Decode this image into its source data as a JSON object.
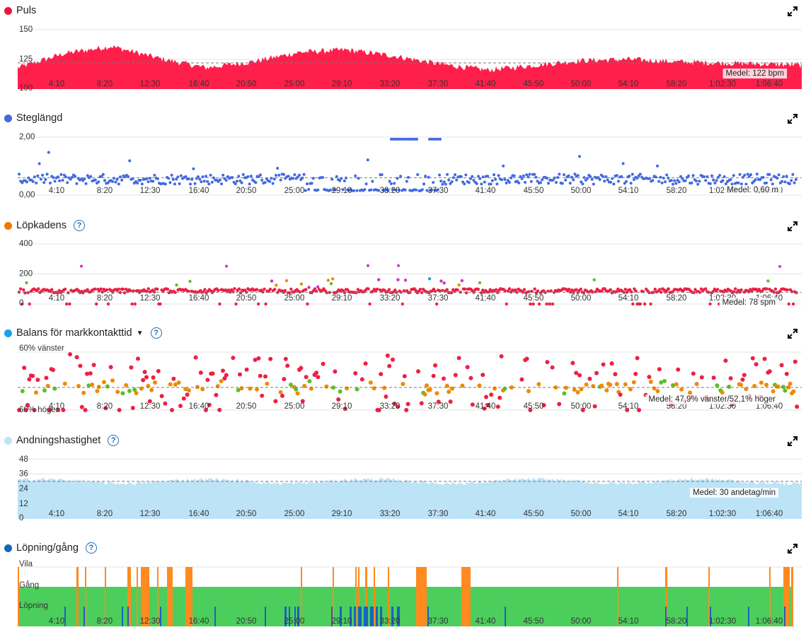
{
  "x_ticks": [
    "4:10",
    "8:20",
    "12:30",
    "16:40",
    "20:50",
    "25:00",
    "29:10",
    "33:20",
    "37:30",
    "41:40",
    "45:50",
    "50:00",
    "54:10",
    "58:20",
    "1:02:30",
    "1:06:40"
  ],
  "colors": {
    "heart_rate": "#ff1f4b",
    "stride": "#4169e1",
    "cadence_red": "#ee1f44",
    "cadence_orange": "#f08a00",
    "cadence_green": "#5cbf2a",
    "cadence_purple": "#cc33cc",
    "cadence_blue": "#16a3d8",
    "respiration": "#bde3f7",
    "run_walk_green": "#4cce5c",
    "run_walk_orange": "#ff8a1f",
    "run_walk_blue": "#1565c0",
    "grid": "#e3e3e3",
    "avg_line": "#777777"
  },
  "panels": {
    "heart_rate": {
      "title": "Puls",
      "dot_color": "#f0143c",
      "help": false,
      "caret": false,
      "avg_label": "Medel: 122 bpm"
    },
    "stride": {
      "title": "Steglängd",
      "dot_color": "#4169e1",
      "help": false,
      "caret": false,
      "avg_label": "Medel: 0,60 m"
    },
    "cadence": {
      "title": "Löpkadens",
      "dot_color": "#f07800",
      "help": true,
      "caret": false,
      "avg_label": "Medel: 78 spm"
    },
    "balance": {
      "title": "Balans för markkontakttid",
      "dot_color": "#16a3e8",
      "help": true,
      "caret": true,
      "avg_label": "Medel: 47,9% vänster/52,1% höger"
    },
    "respiration": {
      "title": "Andningshastighet",
      "dot_color": "#bde3f7",
      "help": true,
      "caret": false,
      "avg_label": "Medel: 30 andetag/min"
    },
    "run_walk": {
      "title": "Löpning/gång",
      "dot_color": "#1565c0",
      "help": true,
      "caret": false
    }
  },
  "chart_data": [
    {
      "type": "area",
      "title": "Puls",
      "unit": "bpm",
      "ylim": [
        100,
        150
      ],
      "y_ticks": [
        "150",
        "125",
        "100"
      ],
      "average": 122,
      "series_shape": [
        {
          "x": "0:00",
          "y": 118
        },
        {
          "x": "4:10",
          "y": 130
        },
        {
          "x": "8:20",
          "y": 136
        },
        {
          "x": "12:30",
          "y": 126
        },
        {
          "x": "16:40",
          "y": 118
        },
        {
          "x": "20:50",
          "y": 123
        },
        {
          "x": "25:00",
          "y": 131
        },
        {
          "x": "29:10",
          "y": 133
        },
        {
          "x": "33:20",
          "y": 128
        },
        {
          "x": "37:30",
          "y": 121
        },
        {
          "x": "41:40",
          "y": 116
        },
        {
          "x": "45:50",
          "y": 120
        },
        {
          "x": "50:00",
          "y": 124
        },
        {
          "x": "54:10",
          "y": 125
        },
        {
          "x": "58:20",
          "y": 123
        },
        {
          "x": "1:02:30",
          "y": 122
        },
        {
          "x": "1:06:40",
          "y": 121
        },
        {
          "x": "1:09:30",
          "y": 120
        }
      ]
    },
    {
      "type": "scatter",
      "title": "Steglängd",
      "unit": "m",
      "ylim": [
        0,
        2
      ],
      "y_ticks": [
        "2,00",
        "0,00"
      ],
      "average": 0.6
    },
    {
      "type": "scatter",
      "title": "Löpkadens",
      "unit": "spm",
      "ylim": [
        0,
        400
      ],
      "y_ticks": [
        "400",
        "200",
        "0"
      ],
      "average": 78
    },
    {
      "type": "scatter",
      "title": "Balans för markkontakttid",
      "y_ticks": [
        "60% vänster",
        "60% höger"
      ],
      "average": "47,9% vänster/52,1% höger"
    },
    {
      "type": "area",
      "title": "Andningshastighet",
      "unit": "andetag/min",
      "ylim": [
        0,
        48
      ],
      "y_ticks": [
        "48",
        "36",
        "24",
        "12",
        "0"
      ],
      "average": 30
    },
    {
      "type": "bar",
      "title": "Löpning/gång",
      "categories": [
        "Vila",
        "Gång",
        "Löpning"
      ]
    }
  ]
}
